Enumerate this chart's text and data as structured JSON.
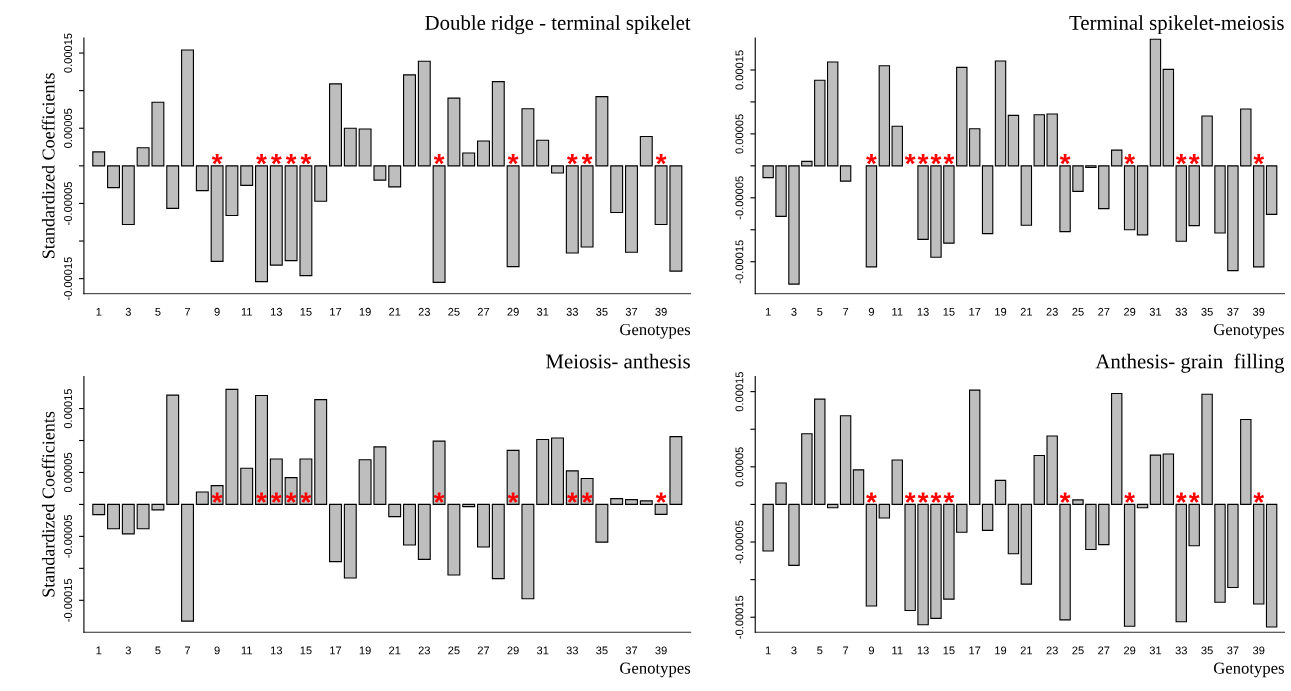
{
  "chart_data": [
    {
      "type": "bar",
      "title": "Double ridge - terminal spikelet",
      "xlabel": "Genotypes",
      "ylabel": "Standardized Coefficients",
      "color": "#bebebe",
      "x": [
        1,
        2,
        3,
        4,
        5,
        6,
        7,
        8,
        9,
        10,
        11,
        12,
        13,
        14,
        15,
        16,
        17,
        18,
        19,
        20,
        21,
        22,
        23,
        24,
        25,
        26,
        27,
        28,
        29,
        30,
        31,
        32,
        33,
        34,
        35,
        36,
        37,
        38,
        39,
        40
      ],
      "values": [
        1.85e-05,
        -2.9e-05,
        -7.8e-05,
        2.4e-05,
        8.45e-05,
        -5.65e-05,
        0.000154,
        -3.3e-05,
        -0.000127,
        -6.6e-05,
        -2.6e-05,
        -0.000154,
        -0.000132,
        -0.000126,
        -0.000146,
        -4.7e-05,
        0.000109,
        5e-05,
        4.9e-05,
        -1.9e-05,
        -2.8e-05,
        0.000121,
        0.000139,
        -0.000155,
        9e-05,
        1.7e-05,
        3.3e-05,
        0.000112,
        -0.000134,
        7.6e-05,
        3.4e-05,
        -9.5e-06,
        -0.000116,
        -0.000108,
        9.2e-05,
        -6.2e-05,
        -0.000115,
        3.9e-05,
        -7.8e-05,
        -0.00014
      ],
      "xlim": [
        0,
        41
      ],
      "xticks": [
        1,
        3,
        5,
        7,
        9,
        11,
        13,
        15,
        17,
        19,
        21,
        23,
        25,
        27,
        29,
        31,
        33,
        35,
        37,
        39
      ],
      "ylim": [
        -0.00017,
        0.00017
      ],
      "yticks": [
        {
          "value": 0.00015,
          "label": "0.00015"
        },
        {
          "value": 0.0001,
          "label": null
        },
        {
          "value": 5e-05,
          "label": "0.00005"
        },
        {
          "value": 0,
          "label": null
        },
        {
          "value": -5e-05,
          "label": "-0.00005"
        },
        {
          "value": -0.0001,
          "label": null
        },
        {
          "value": -0.00015,
          "label": "-0.00015"
        }
      ],
      "annotations": [
        {
          "text": "*",
          "x": 9,
          "y": 0
        },
        {
          "text": "*",
          "x": 12,
          "y": 0
        },
        {
          "text": "*",
          "x": 13,
          "y": 0
        },
        {
          "text": "*",
          "x": 14,
          "y": 0
        },
        {
          "text": "*",
          "x": 15,
          "y": 0
        },
        {
          "text": "*",
          "x": 24,
          "y": 0
        },
        {
          "text": "*",
          "x": 29,
          "y": 0
        },
        {
          "text": "*",
          "x": 33,
          "y": 0
        },
        {
          "text": "*",
          "x": 34,
          "y": 0
        },
        {
          "text": "*",
          "x": 39,
          "y": 0
        }
      ]
    },
    {
      "type": "bar",
      "title": "Terminal spikelet-meiosis",
      "xlabel": "Genotypes",
      "color": "#bebebe",
      "x": [
        1,
        2,
        3,
        4,
        5,
        6,
        7,
        8,
        9,
        10,
        11,
        12,
        13,
        14,
        15,
        16,
        17,
        18,
        19,
        20,
        21,
        22,
        23,
        24,
        25,
        26,
        27,
        28,
        29,
        30,
        31,
        32,
        33,
        34,
        35,
        36,
        37,
        38,
        39,
        40
      ],
      "values": [
        -1.85e-05,
        -7.9e-05,
        -0.000185,
        7e-06,
        0.000134,
        0.0001625,
        -2.4e-05,
        0,
        -0.000158,
        0.0001565,
        6.2e-05,
        0,
        -0.000115,
        -0.000143,
        -0.000121,
        0.000154,
        5.8e-05,
        -0.000106,
        0.000164,
        7.9e-05,
        -9.3e-05,
        8e-05,
        8.1e-05,
        -0.000103,
        -4e-05,
        -2.5e-06,
        -6.7e-05,
        2.45e-05,
        -0.0001,
        -0.000108,
        0.000198,
        0.000151,
        -0.000118,
        -9.35e-05,
        7.8e-05,
        -0.000105,
        -0.000164,
        8.9e-05,
        -0.000158,
        -7.6e-05
      ],
      "xlim": [
        0,
        41
      ],
      "xticks": [
        1,
        3,
        5,
        7,
        9,
        11,
        13,
        15,
        17,
        19,
        21,
        23,
        25,
        27,
        29,
        31,
        33,
        35,
        37,
        39
      ],
      "ylim": [
        -0.0002,
        0.0002
      ],
      "yticks": [
        {
          "value": 0.00015,
          "label": "0.00015"
        },
        {
          "value": 0.0001,
          "label": null
        },
        {
          "value": 5e-05,
          "label": "0.00005"
        },
        {
          "value": 0,
          "label": null
        },
        {
          "value": -5e-05,
          "label": "-0.00005"
        },
        {
          "value": -0.0001,
          "label": null
        },
        {
          "value": -0.00015,
          "label": "-0.00015"
        }
      ],
      "annotations": [
        {
          "text": "*",
          "x": 9,
          "y": 0
        },
        {
          "text": "*",
          "x": 12,
          "y": 0
        },
        {
          "text": "*",
          "x": 13,
          "y": 0
        },
        {
          "text": "*",
          "x": 14,
          "y": 0
        },
        {
          "text": "*",
          "x": 15,
          "y": 0
        },
        {
          "text": "*",
          "x": 24,
          "y": 0
        },
        {
          "text": "*",
          "x": 29,
          "y": 0
        },
        {
          "text": "*",
          "x": 33,
          "y": 0
        },
        {
          "text": "*",
          "x": 34,
          "y": 0
        },
        {
          "text": "*",
          "x": 39,
          "y": 0
        }
      ]
    },
    {
      "type": "bar",
      "title": "Meiosis- anthesis",
      "xlabel": "Genotypes",
      "ylabel": "Standardized Coefficients",
      "color": "#bebebe",
      "x": [
        1,
        2,
        3,
        4,
        5,
        6,
        7,
        8,
        9,
        10,
        11,
        12,
        13,
        14,
        15,
        16,
        17,
        18,
        19,
        20,
        21,
        22,
        23,
        24,
        25,
        26,
        27,
        28,
        29,
        30,
        31,
        32,
        33,
        34,
        35,
        36,
        37,
        38,
        39,
        40
      ],
      "values": [
        -1.6e-05,
        -3.8e-05,
        -4.6e-05,
        -3.8e-05,
        -8.5e-06,
        0.000171,
        -0.0001825,
        1.95e-05,
        2.95e-05,
        0.00018,
        5.65e-05,
        0.0001705,
        7.1e-05,
        4.2e-05,
        7.1e-05,
        0.000164,
        -8.95e-05,
        -0.000115,
        7e-05,
        9e-05,
        -1.9e-05,
        -6.35e-05,
        -8.6e-05,
        9.9e-05,
        -0.0001105,
        -3.5e-06,
        -6.65e-05,
        -0.000116,
        8.45e-05,
        -0.0001475,
        0.0001015,
        0.000104,
        5.25e-05,
        4.05e-05,
        -5.9e-05,
        9e-06,
        7.5e-06,
        5.5e-06,
        -1.55e-05,
        0.000106
      ],
      "xlim": [
        0,
        41
      ],
      "xticks": [
        1,
        3,
        5,
        7,
        9,
        11,
        13,
        15,
        17,
        19,
        21,
        23,
        25,
        27,
        29,
        31,
        33,
        35,
        37,
        39
      ],
      "ylim": [
        -0.0002,
        0.0002
      ],
      "yticks": [
        {
          "value": 0.00015,
          "label": "0.00015"
        },
        {
          "value": 0.0001,
          "label": null
        },
        {
          "value": 5e-05,
          "label": "0.00005"
        },
        {
          "value": 0,
          "label": null
        },
        {
          "value": -5e-05,
          "label": "-0.00005"
        },
        {
          "value": -0.0001,
          "label": null
        },
        {
          "value": -0.00015,
          "label": "-0.00015"
        }
      ],
      "annotations": [
        {
          "text": "*",
          "x": 9,
          "y": 0
        },
        {
          "text": "*",
          "x": 12,
          "y": 0
        },
        {
          "text": "*",
          "x": 13,
          "y": 0
        },
        {
          "text": "*",
          "x": 14,
          "y": 0
        },
        {
          "text": "*",
          "x": 15,
          "y": 0
        },
        {
          "text": "*",
          "x": 24,
          "y": 0
        },
        {
          "text": "*",
          "x": 29,
          "y": 0
        },
        {
          "text": "*",
          "x": 33,
          "y": 0
        },
        {
          "text": "*",
          "x": 34,
          "y": 0
        },
        {
          "text": "*",
          "x": 39,
          "y": 0
        }
      ]
    },
    {
      "type": "bar",
      "title": "Anthesis- grain  filling",
      "xlabel": "Genotypes",
      "color": "#bebebe",
      "x": [
        1,
        2,
        3,
        4,
        5,
        6,
        7,
        8,
        9,
        10,
        11,
        12,
        13,
        14,
        15,
        16,
        17,
        18,
        19,
        20,
        21,
        22,
        23,
        24,
        25,
        26,
        27,
        28,
        29,
        30,
        31,
        32,
        33,
        34,
        35,
        36,
        37,
        38,
        39,
        40
      ],
      "values": [
        -6.2e-05,
        2.85e-05,
        -8.1e-05,
        9.4e-05,
        0.00014,
        -4.5e-06,
        0.000118,
        4.6e-05,
        -0.000135,
        -1.8e-05,
        5.9e-05,
        -0.000141,
        -0.00016,
        -0.0001515,
        -0.000126,
        -3.7e-05,
        0.000152,
        -3.45e-05,
        3.2e-05,
        -6.55e-05,
        -0.000106,
        6.5e-05,
        9.1e-05,
        -0.0001535,
        6e-06,
        -6e-05,
        -5.35e-05,
        0.0001475,
        -0.000162,
        -4.5e-06,
        6.55e-05,
        6.7e-05,
        -0.000156,
        -5.5e-05,
        0.0001465,
        -0.00013,
        -0.0001105,
        0.000113,
        -0.0001325,
        -0.000163
      ],
      "xlim": [
        0,
        41
      ],
      "xticks": [
        1,
        3,
        5,
        7,
        9,
        11,
        13,
        15,
        17,
        19,
        21,
        23,
        25,
        27,
        29,
        31,
        33,
        35,
        37,
        39
      ],
      "ylim": [
        -0.00017,
        0.00017
      ],
      "yticks": [
        {
          "value": 0.00015,
          "label": "0.00015"
        },
        {
          "value": 0.0001,
          "label": null
        },
        {
          "value": 5e-05,
          "label": "0.00005"
        },
        {
          "value": 0,
          "label": null
        },
        {
          "value": -5e-05,
          "label": "-0.00005"
        },
        {
          "value": -0.0001,
          "label": null
        },
        {
          "value": -0.00015,
          "label": "-0.00015"
        }
      ],
      "annotations": [
        {
          "text": "*",
          "x": 9,
          "y": 0
        },
        {
          "text": "*",
          "x": 12,
          "y": 0
        },
        {
          "text": "*",
          "x": 13,
          "y": 0
        },
        {
          "text": "*",
          "x": 14,
          "y": 0
        },
        {
          "text": "*",
          "x": 15,
          "y": 0
        },
        {
          "text": "*",
          "x": 24,
          "y": 0
        },
        {
          "text": "*",
          "x": 29,
          "y": 0
        },
        {
          "text": "*",
          "x": 33,
          "y": 0
        },
        {
          "text": "*",
          "x": 34,
          "y": 0
        },
        {
          "text": "*",
          "x": 39,
          "y": 0
        }
      ]
    }
  ]
}
